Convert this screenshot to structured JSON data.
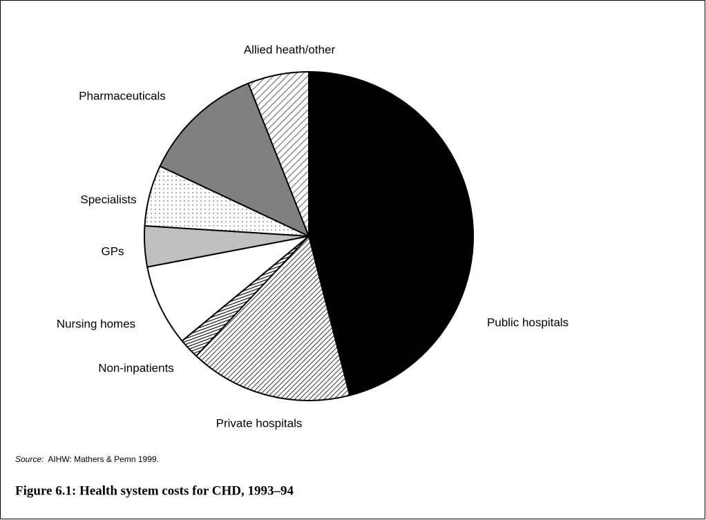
{
  "chart_data": {
    "type": "pie",
    "categories": [
      "Public hospitals",
      "Private hospitals",
      "Non-inpatients",
      "Nursing homes",
      "GPs",
      "Specialists",
      "Pharmaceuticals",
      "Allied heath/other"
    ],
    "values": [
      46,
      16,
      2,
      8,
      4,
      6,
      12,
      6
    ],
    "colors": [
      "#000000",
      "#9a9a9a",
      "#555555",
      "#ffffff",
      "#c0c0c0",
      "#f2f2f2",
      "#808080",
      "#e0e0e0"
    ],
    "source_label": "Source:",
    "source": "AIHW: Mathers & Pemn 1999.",
    "caption": "Figure 6.1: Health system costs for CHD, 1993–94"
  }
}
